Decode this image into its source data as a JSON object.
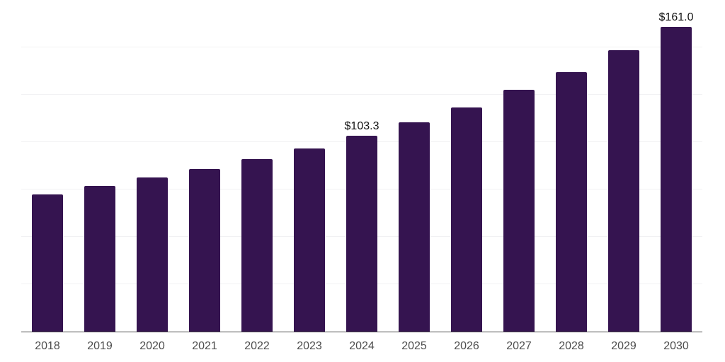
{
  "style": {
    "bar_color": "#351450",
    "axis_line_color": "#4a4a4a",
    "gridline_color": "#f1f1f3",
    "tick_label_color": "#4d4d4d",
    "data_label_color": "#121212",
    "background_color": "#ffffff"
  },
  "chart_data": {
    "type": "bar",
    "title": "",
    "xlabel": "",
    "ylabel": "",
    "categories": [
      "2018",
      "2019",
      "2020",
      "2021",
      "2022",
      "2023",
      "2024",
      "2025",
      "2026",
      "2027",
      "2028",
      "2029",
      "2030"
    ],
    "values": [
      72.4,
      77.0,
      81.5,
      85.9,
      91.1,
      96.7,
      103.3,
      110.5,
      118.4,
      127.8,
      137.0,
      148.6,
      161.0
    ],
    "data_labels": {
      "2024": "$103.3",
      "2030": "$161.0"
    },
    "ylim": [
      0,
      175
    ],
    "y_grid_step": 25,
    "grid": true,
    "legend": false,
    "y_axis_tick_labels_visible": false
  }
}
